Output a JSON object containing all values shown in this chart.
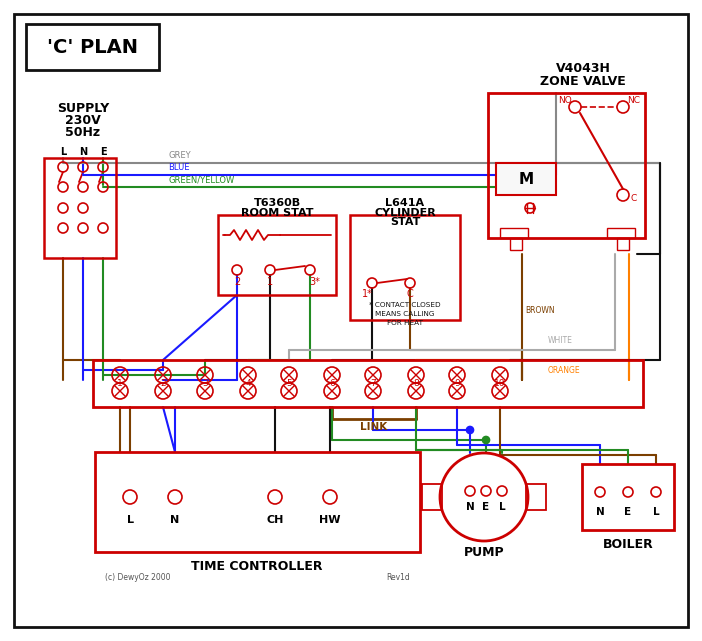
{
  "bg": "#ffffff",
  "RED": "#cc0000",
  "GREY": "#888888",
  "BLUE": "#1a1aff",
  "GREEN": "#228B22",
  "BROWN": "#7B3F00",
  "BLACK": "#111111",
  "WHITE_W": "#aaaaaa",
  "ORANGE": "#FF8000",
  "title": "'C' PLAN",
  "copyright": "(c) DewyOz 2000",
  "rev": "Rev1d",
  "wire_labels": {
    "GREY": "GREY",
    "BLUE": "BLUE",
    "GY": "GREEN/YELLOW",
    "BROWN": "BROWN",
    "WHITE": "WHITE",
    "ORANGE": "ORANGE"
  }
}
